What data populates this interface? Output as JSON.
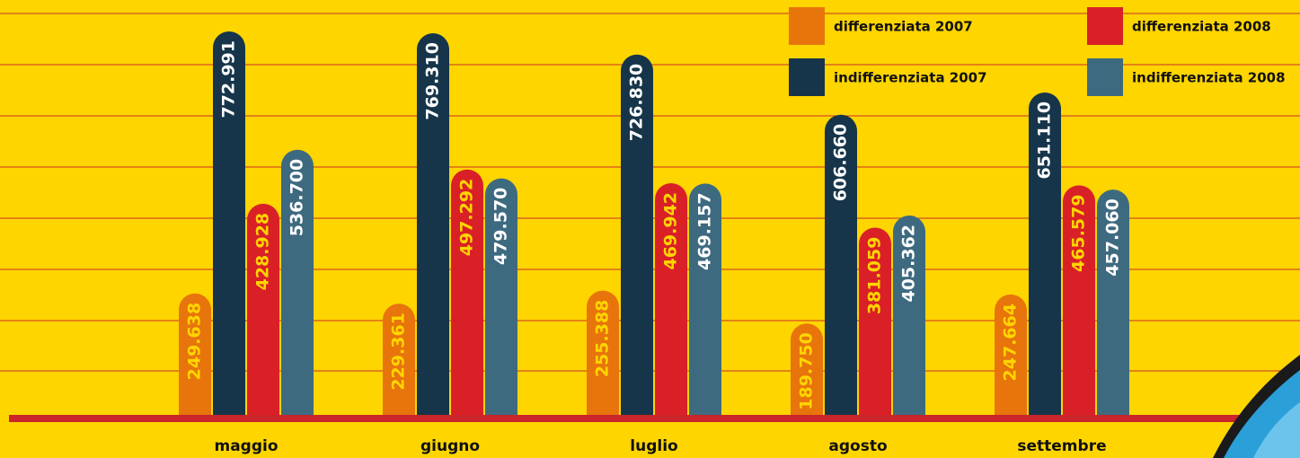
{
  "chart_data": {
    "type": "bar",
    "categories": [
      "maggio",
      "giugno",
      "luglio",
      "agosto",
      "settembre"
    ],
    "series": [
      {
        "name": "differenziata 2007",
        "color": "#e8740c",
        "label_color": "#ffd500",
        "values": [
          249638,
          229361,
          255388,
          189750,
          247664
        ],
        "value_labels": [
          "249.638",
          "229.361",
          "255.388",
          "189.750",
          "247.664"
        ]
      },
      {
        "name": "indifferenziata 2007",
        "color": "#16354a",
        "label_color": "#ffffff",
        "values": [
          772991,
          769310,
          726830,
          606660,
          651110
        ],
        "value_labels": [
          "772.991",
          "769.310",
          "726.830",
          "606.660",
          "651.110"
        ]
      },
      {
        "name": "differenziata 2008",
        "color": "#d92027",
        "label_color": "#ffd500",
        "values": [
          428928,
          497292,
          469942,
          381059,
          465579
        ],
        "value_labels": [
          "428.928",
          "497.292",
          "469.942",
          "381.059",
          "465.579"
        ]
      },
      {
        "name": "indifferenziata 2008",
        "color": "#3e6a80",
        "label_color": "#ffffff",
        "values": [
          536700,
          479570,
          469157,
          405362,
          457060
        ],
        "value_labels": [
          "536.700",
          "479.570",
          "469.157",
          "405.362",
          "457.060"
        ]
      }
    ],
    "legend": "upper right"
  }
}
